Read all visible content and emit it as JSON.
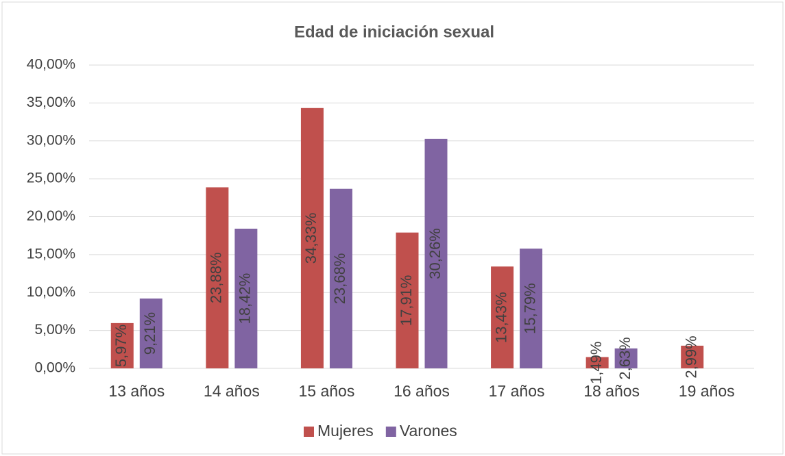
{
  "chart_data": {
    "type": "bar",
    "title": "Edad de iniciación sexual",
    "categories": [
      "13 años",
      "14 años",
      "15 años",
      "16 años",
      "17 años",
      "18 años",
      "19 años"
    ],
    "series": [
      {
        "name": "Mujeres",
        "color": "#c0504d",
        "values": [
          5.97,
          23.88,
          34.33,
          17.91,
          13.43,
          1.49,
          2.99
        ],
        "value_labels": [
          "5,97%",
          "23,88%",
          "34,33%",
          "17,91%",
          "13,43%",
          "1,49%",
          "2,99%"
        ]
      },
      {
        "name": "Varones",
        "color": "#8064a2",
        "values": [
          9.21,
          18.42,
          23.68,
          30.26,
          15.79,
          2.63,
          null
        ],
        "value_labels": [
          "9,21%",
          "18,42%",
          "23,68%",
          "30,26%",
          "15,79%",
          "2,63%",
          null
        ]
      }
    ],
    "ylim": [
      0,
      40
    ],
    "yticks": [
      {
        "value": 0,
        "label": "0,00%"
      },
      {
        "value": 5,
        "label": "5,00%"
      },
      {
        "value": 10,
        "label": "10,00%"
      },
      {
        "value": 15,
        "label": "15,00%"
      },
      {
        "value": 20,
        "label": "20,00%"
      },
      {
        "value": 25,
        "label": "25,00%"
      },
      {
        "value": 30,
        "label": "30,00%"
      },
      {
        "value": 35,
        "label": "35,00%"
      },
      {
        "value": 40,
        "label": "40,00%"
      }
    ],
    "grid": true,
    "legend": "bottom"
  }
}
